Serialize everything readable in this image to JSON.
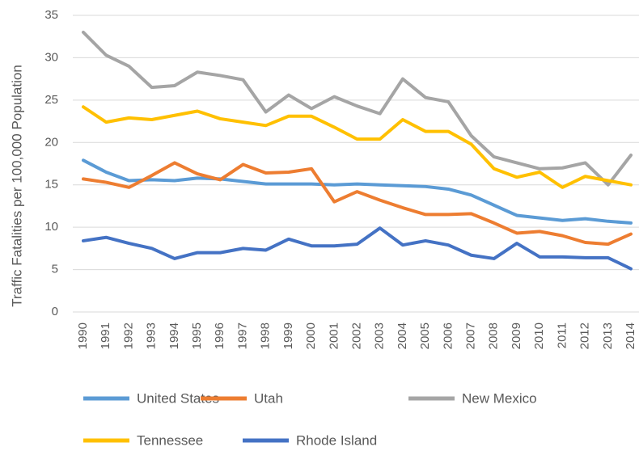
{
  "chart_data": {
    "type": "line",
    "y_label": "Traffic Fatalities per 100,000 Population",
    "categories": [
      "1990",
      "1991",
      "1992",
      "1993",
      "1994",
      "1995",
      "1996",
      "1997",
      "1998",
      "1999",
      "2000",
      "2001",
      "2002",
      "2003",
      "2004",
      "2005",
      "2006",
      "2007",
      "2008",
      "2009",
      "2010",
      "2011",
      "2012",
      "2013",
      "2014"
    ],
    "series": [
      {
        "name": "United States",
        "color": "#5b9bd5",
        "values": [
          17.9,
          16.5,
          15.5,
          15.6,
          15.5,
          15.8,
          15.7,
          15.4,
          15.1,
          15.1,
          15.1,
          15.0,
          15.1,
          15.0,
          14.9,
          14.8,
          14.5,
          13.8,
          12.6,
          11.4,
          11.1,
          10.8,
          11.0,
          10.7,
          10.5
        ]
      },
      {
        "name": "Utah",
        "color": "#ed7d31",
        "values": [
          15.7,
          15.3,
          14.7,
          16.1,
          17.6,
          16.3,
          15.6,
          17.4,
          16.4,
          16.5,
          16.9,
          13.0,
          14.2,
          13.2,
          12.3,
          11.5,
          11.5,
          11.6,
          10.5,
          9.3,
          9.5,
          9.0,
          8.2,
          8.0,
          9.2
        ]
      },
      {
        "name": "New Mexico",
        "color": "#a5a5a5",
        "values": [
          33.0,
          30.3,
          29.0,
          26.5,
          26.7,
          28.3,
          27.9,
          27.4,
          23.6,
          25.6,
          24.0,
          25.4,
          24.3,
          23.4,
          27.5,
          25.3,
          24.8,
          20.8,
          18.3,
          17.6,
          16.9,
          17.0,
          17.6,
          15.0,
          18.5
        ]
      },
      {
        "name": "Tennessee",
        "color": "#ffc000",
        "values": [
          24.2,
          22.4,
          22.9,
          22.7,
          23.2,
          23.7,
          22.8,
          22.4,
          22.0,
          23.1,
          23.1,
          21.8,
          20.4,
          20.4,
          22.7,
          21.3,
          21.3,
          19.8,
          16.9,
          15.9,
          16.5,
          14.7,
          16.0,
          15.5,
          15.0
        ]
      },
      {
        "name": "Rhode Island",
        "color": "#4472c4",
        "values": [
          8.4,
          8.8,
          8.1,
          7.5,
          6.3,
          7.0,
          7.0,
          7.5,
          7.3,
          8.6,
          7.8,
          7.8,
          8.0,
          9.9,
          7.9,
          8.4,
          7.9,
          6.7,
          6.3,
          8.1,
          6.5,
          6.5,
          6.4,
          6.4,
          5.1
        ]
      }
    ],
    "ylim": [
      0,
      35
    ],
    "yticks": [
      0,
      5,
      10,
      15,
      20,
      25,
      30,
      35
    ],
    "grid": true
  }
}
